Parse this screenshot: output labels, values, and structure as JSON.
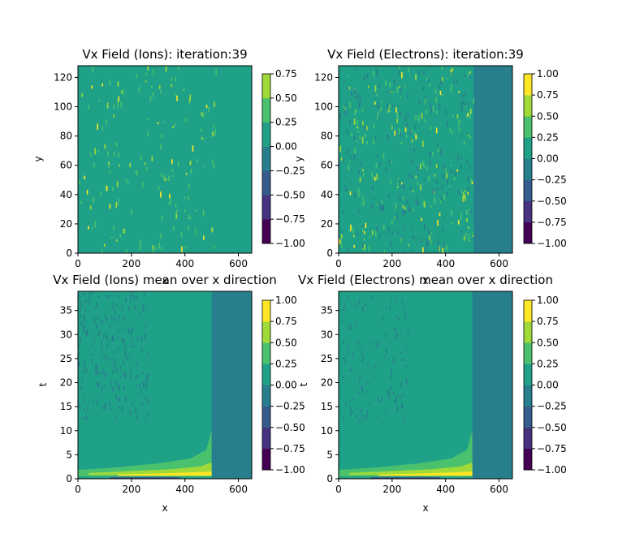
{
  "colors": {
    "levels": [
      "#440154",
      "#46327e",
      "#365c8d",
      "#277f8e",
      "#1fa187",
      "#4ac16d",
      "#a0da39",
      "#fde725"
    ],
    "background": "#ffffff"
  },
  "chart_data": [
    {
      "type": "heatmap",
      "title": "Vx Field (Ions): iteration:39",
      "xlabel": "x",
      "ylabel": "y",
      "xlim": [
        0,
        650
      ],
      "ylim": [
        0,
        128
      ],
      "xticks": [
        0,
        200,
        400,
        600
      ],
      "yticks": [
        0,
        20,
        40,
        60,
        80,
        100,
        120
      ],
      "colorbar": {
        "ticks": [
          -1.0,
          -0.75,
          -0.5,
          -0.25,
          0.0,
          0.25,
          0.5,
          0.75
        ],
        "tick_labels": [
          "−1.00",
          "−0.75",
          "−0.50",
          "−0.25",
          "0.00",
          "0.25",
          "0.50",
          "0.75"
        ],
        "range": [
          -1.0,
          0.75
        ],
        "level_colors": [
          "#440154",
          "#3b528b",
          "#21918c",
          "#5ec962",
          "#a0da39",
          "#fde725",
          "#fde725"
        ]
      },
      "background_level": 0.0
    },
    {
      "type": "heatmap",
      "title": "Vx Field (Electrons): iteration:39",
      "xlabel": "x",
      "ylabel": "y",
      "xlim": [
        0,
        650
      ],
      "ylim": [
        0,
        128
      ],
      "xticks": [
        0,
        200,
        400,
        600
      ],
      "yticks": [
        0,
        20,
        40,
        60,
        80,
        100,
        120
      ],
      "colorbar": {
        "ticks": [
          -1.0,
          -0.75,
          -0.5,
          -0.25,
          0.0,
          0.25,
          0.5,
          0.75,
          1.0
        ],
        "tick_labels": [
          "−1.00",
          "−0.75",
          "−0.50",
          "−0.25",
          "0.00",
          "0.25",
          "0.50",
          "0.75",
          "1.00"
        ],
        "range": [
          -1.0,
          1.0
        ]
      },
      "right_region_start_x": 505,
      "background_level": 0.0,
      "right_region_level": -0.25
    },
    {
      "type": "heatmap",
      "title": "Vx Field (Ions) mean over x direction",
      "xlabel": "x",
      "ylabel": "t",
      "xlim": [
        0,
        650
      ],
      "ylim": [
        0,
        39
      ],
      "xticks": [
        0,
        200,
        400,
        600
      ],
      "yticks": [
        0,
        5,
        10,
        15,
        20,
        25,
        30,
        35
      ],
      "colorbar": {
        "ticks": [
          -1.0,
          -0.75,
          -0.5,
          -0.25,
          0.0,
          0.25,
          0.5,
          0.75,
          1.0
        ],
        "tick_labels": [
          "−1.00",
          "−0.75",
          "−0.50",
          "−0.25",
          "0.00",
          "0.25",
          "0.50",
          "0.75",
          "1.00"
        ],
        "range": [
          -1.0,
          1.0
        ]
      },
      "right_region_start_x": 500,
      "background_level": 0.125,
      "right_region_level": -0.125
    },
    {
      "type": "heatmap",
      "title": "Vx Field (Electrons) mean over x direction",
      "xlabel": "x",
      "ylabel": "t",
      "xlim": [
        0,
        650
      ],
      "ylim": [
        0,
        39
      ],
      "xticks": [
        0,
        200,
        400,
        600
      ],
      "yticks": [
        0,
        5,
        10,
        15,
        20,
        25,
        30,
        35
      ],
      "colorbar": {
        "ticks": [
          -1.0,
          -0.75,
          -0.5,
          -0.25,
          0.0,
          0.25,
          0.5,
          0.75,
          1.0
        ],
        "tick_labels": [
          "−1.00",
          "−0.75",
          "−0.50",
          "−0.25",
          "0.00",
          "0.25",
          "0.50",
          "0.75",
          "1.00"
        ],
        "range": [
          -1.0,
          1.0
        ]
      },
      "right_region_start_x": 500,
      "background_level": 0.125,
      "right_region_level": -0.125
    }
  ]
}
